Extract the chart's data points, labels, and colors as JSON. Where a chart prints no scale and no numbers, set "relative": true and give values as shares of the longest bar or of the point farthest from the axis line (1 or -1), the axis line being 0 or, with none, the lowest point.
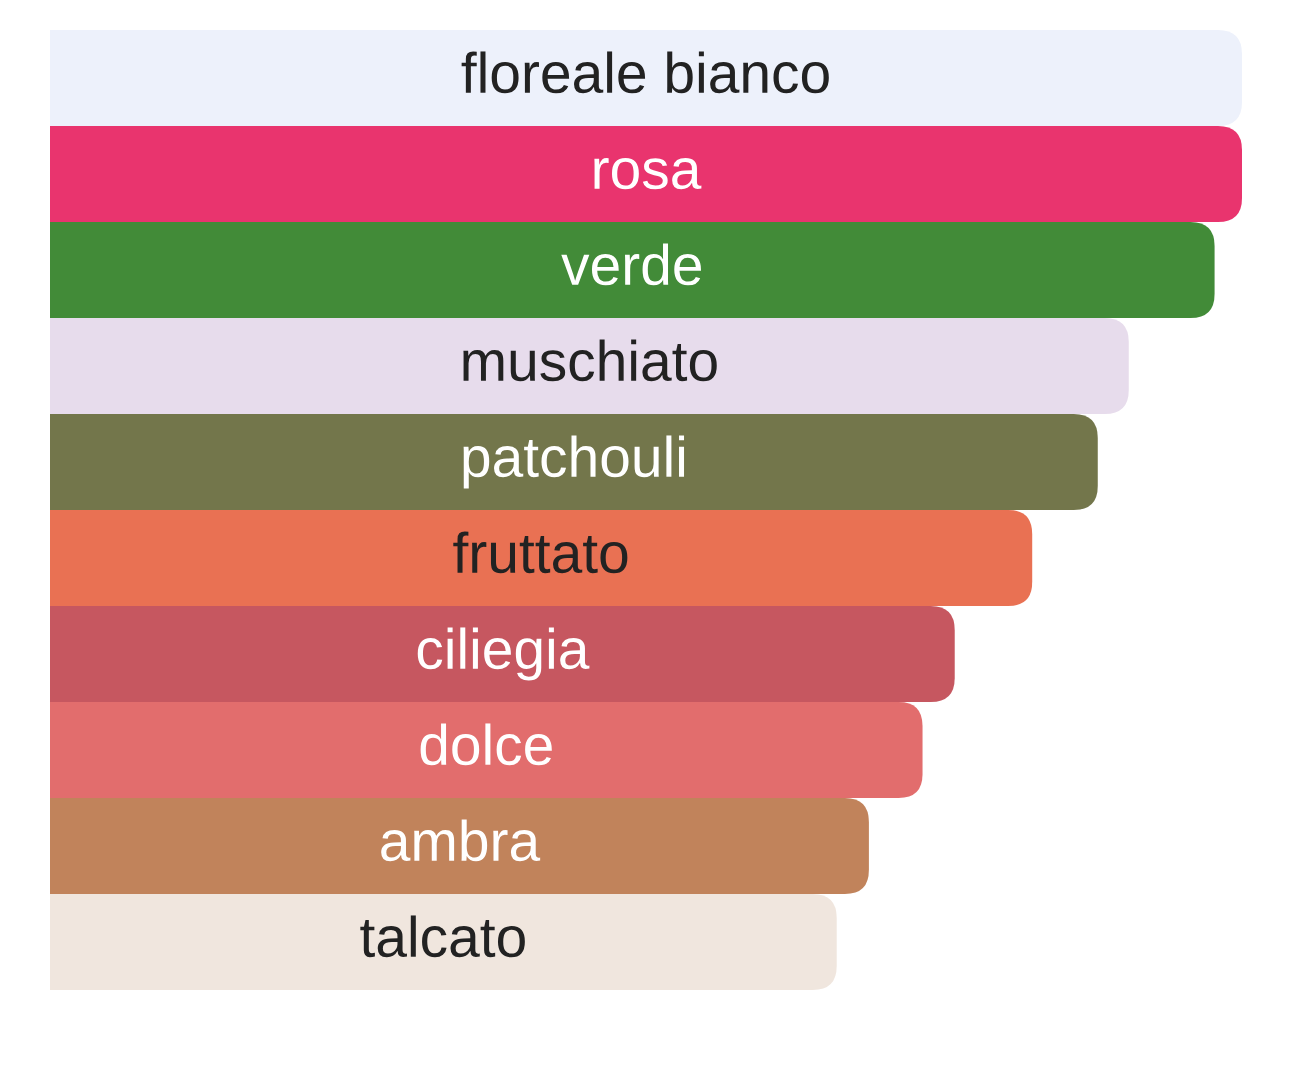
{
  "chart_data": {
    "type": "bar",
    "orientation": "horizontal",
    "relative": true,
    "categories": [
      "floreale bianco",
      "rosa",
      "verde",
      "muschiato",
      "patchouli",
      "fruttato",
      "ciliegia",
      "dolce",
      "ambra",
      "talcato"
    ],
    "values": [
      1,
      1,
      0.977,
      0.905,
      0.879,
      0.824,
      0.759,
      0.732,
      0.687,
      0.66
    ],
    "colors": [
      "#edf1fb",
      "#e9346e",
      "#428b38",
      "#e7dcec",
      "#73764b",
      "#e97153",
      "#c65760",
      "#e26d6d",
      "#c1835b",
      "#f0e6de"
    ]
  }
}
